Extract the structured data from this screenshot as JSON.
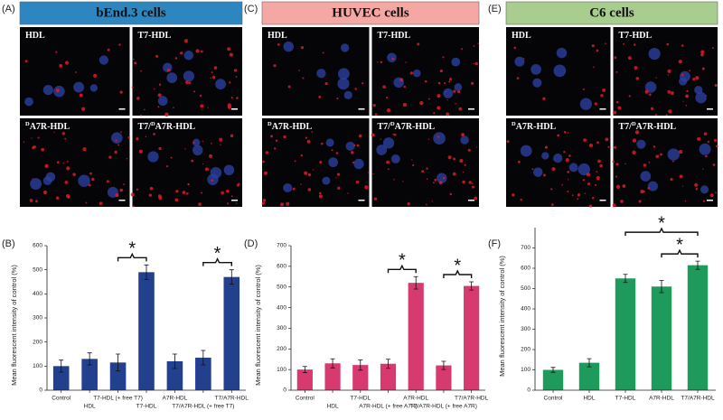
{
  "image_panels": [
    {
      "letter": "(A)",
      "title": "bEnd.3 cells",
      "color": "#2e86c1",
      "images": [
        {
          "text": "HDL"
        },
        {
          "text": "T7-HDL"
        },
        {
          "sup": "D",
          "text": "A7R-HDL"
        },
        {
          "text": "T7/",
          "sup": "D",
          "rest": "A7R-HDL"
        }
      ]
    },
    {
      "letter": "(C)",
      "title": "HUVEC cells",
      "color": "#f4a7a3",
      "images": [
        {
          "text": "HDL"
        },
        {
          "text": "T7-HDL"
        },
        {
          "sup": "D",
          "text": "A7R-HDL"
        },
        {
          "text": "T7/",
          "sup": "D",
          "rest": "A7R-HDL"
        }
      ]
    },
    {
      "letter": "(E)",
      "title": "C6 cells",
      "color": "#a9cc8f",
      "images": [
        {
          "text": "HDL"
        },
        {
          "text": "T7-HDL"
        },
        {
          "sup": "D",
          "text": "A7R-HDL"
        },
        {
          "text": "T7/",
          "sup": "D",
          "rest": "A7R-HDL"
        }
      ]
    }
  ],
  "chart_data": [
    {
      "type": "bar",
      "panel": "(B)",
      "y_label": "Mean fluorescent intensity of control (%)",
      "categories": [
        "Control",
        "HDL",
        "T7-HDL (+ free T7)",
        "T7-HDL",
        "A7R-HDL",
        "T7/A7R-HDL (+ free T7)",
        "T7/A7R-HDL"
      ],
      "values": [
        100,
        130,
        115,
        490,
        120,
        135,
        470
      ],
      "errors": [
        25,
        25,
        35,
        30,
        30,
        30,
        30
      ],
      "color": "#23408e",
      "ylim": [
        0,
        600
      ],
      "yticks": [
        0,
        100,
        200,
        300,
        400,
        500,
        600
      ],
      "annotations": [
        {
          "text": "*",
          "between": [
            2,
            3
          ]
        },
        {
          "text": "*",
          "between": [
            5,
            6
          ]
        }
      ]
    },
    {
      "type": "bar",
      "panel": "(D)",
      "y_label": "Mean fluorescent intensity of control (%)",
      "categories": [
        "Control",
        "HDL",
        "T7-HDL",
        "A7R-HDL (+ free A7R)",
        "A7R-HDL",
        "T7/A7R-HDL (+ free A7R)",
        "T7/A7R-HDL"
      ],
      "values": [
        100,
        130,
        122,
        128,
        520,
        120,
        505
      ],
      "errors": [
        15,
        22,
        25,
        22,
        30,
        20,
        20
      ],
      "color": "#d63a6e",
      "ylim": [
        0,
        700
      ],
      "yticks": [
        0,
        100,
        200,
        300,
        400,
        500,
        600,
        700
      ],
      "annotations": [
        {
          "text": "*",
          "between": [
            3,
            4
          ]
        },
        {
          "text": "*",
          "between": [
            5,
            6
          ]
        }
      ]
    },
    {
      "type": "bar",
      "panel": "(F)",
      "y_label": "Mean fluorescent intensity of control (%)",
      "categories": [
        "Control",
        "HDL",
        "T7-HDL",
        "A7R-HDL",
        "T7/A7R-HDL"
      ],
      "values": [
        100,
        135,
        550,
        510,
        615
      ],
      "errors": [
        12,
        20,
        20,
        30,
        20
      ],
      "color": "#1e9a5c",
      "ylim": [
        0,
        800
      ],
      "yticks": [
        0,
        100,
        200,
        300,
        400,
        500,
        600,
        700
      ],
      "annotations": [
        {
          "text": "*",
          "between": [
            3,
            4
          ]
        },
        {
          "text": "*",
          "between": [
            2,
            4
          ]
        }
      ]
    }
  ]
}
